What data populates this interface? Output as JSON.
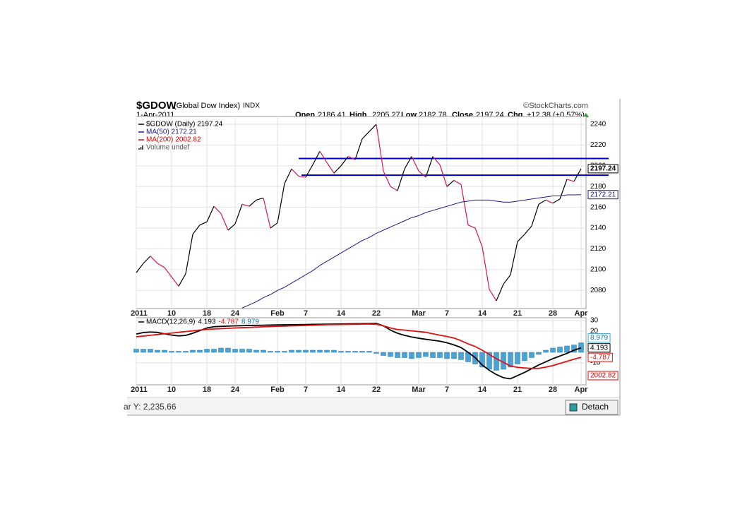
{
  "header": {
    "symbol": "$GDOW",
    "name": "(Global Dow Index)",
    "exchange": "INDX",
    "date": "1-Apr-2011",
    "credit": "©StockCharts.com",
    "quote": [
      {
        "label": "Open",
        "value": 2186.41
      },
      {
        "label": "High",
        "value": 2205.27
      },
      {
        "label": "Low",
        "value": 2182.78
      },
      {
        "label": "Close",
        "value": 2197.24
      },
      {
        "label": "Chg",
        "value": "+12.38 (+0.57%)"
      }
    ]
  },
  "chart_data": [
    {
      "type": "line",
      "xlim": [
        0,
        63.7
      ],
      "ylim": [
        2062.5,
        2247.5
      ],
      "yticks": [
        2080,
        2100,
        2120,
        2140,
        2160,
        2180,
        2200,
        2220,
        2240
      ],
      "grid": true,
      "xticks": [
        {
          "value": 0,
          "label": "2011"
        },
        {
          "value": 5,
          "label": "10"
        },
        {
          "value": 10,
          "label": "18"
        },
        {
          "value": 14,
          "label": "24"
        },
        {
          "value": 20,
          "label": "Feb"
        },
        {
          "value": 24,
          "label": "7"
        },
        {
          "value": 29,
          "label": "14"
        },
        {
          "value": 34,
          "label": "22"
        },
        {
          "value": 40,
          "label": "Mar"
        },
        {
          "value": 44,
          "label": "7"
        },
        {
          "value": 49,
          "label": "14"
        },
        {
          "value": 54,
          "label": "21"
        },
        {
          "value": 59,
          "label": "28"
        },
        {
          "value": 63,
          "label": "Apr"
        }
      ],
      "hlines": [
        2207,
        2191
      ],
      "hline_color": "#0000cc",
      "down_color": "#d6145a",
      "series": [
        {
          "name": "$GDOW (Daily) 2197.24",
          "color": "#000000",
          "values": [
            2097,
            2106,
            2113,
            2106,
            2102,
            2093,
            2084,
            2096,
            2134,
            2143,
            2146,
            2161,
            2154,
            2138,
            2144,
            2163,
            2161,
            2167,
            2169,
            2140,
            2145,
            2183,
            2197,
            2190,
            2189,
            2201,
            2214,
            2203,
            2193,
            2200,
            2209,
            2206,
            2226,
            2233,
            2240,
            2195,
            2180,
            2176,
            2197,
            2209,
            2195,
            2189,
            2209,
            2201,
            2180,
            2186,
            2182,
            2143,
            2140,
            2122,
            2081,
            2070,
            2086,
            2095,
            2127,
            2134,
            2142,
            2163,
            2167,
            2164,
            2168,
            2187,
            2185,
            2197.24
          ]
        },
        {
          "name": "MA(50) 2172.21",
          "color": "#1a1a8c",
          "values": [
            null,
            null,
            null,
            null,
            null,
            null,
            null,
            null,
            null,
            null,
            null,
            null,
            null,
            null,
            null,
            2063,
            2066,
            2069,
            2073,
            2076,
            2080,
            2083,
            2087,
            2091,
            2095,
            2099,
            2104,
            2108,
            2112,
            2116,
            2120,
            2124,
            2128,
            2131,
            2135,
            2138,
            2141,
            2144,
            2147,
            2150,
            2152,
            2155,
            2157,
            2159,
            2161,
            2163,
            2165,
            2166,
            2167,
            2167,
            2167,
            2166,
            2165,
            2165,
            2166,
            2167,
            2168,
            2169,
            2170,
            2171,
            2171,
            2172,
            2172,
            2172.21
          ]
        }
      ],
      "legend_extra": [
        {
          "name": "MA(200)",
          "value": 2002.82,
          "color": "#dd0000"
        },
        {
          "name": "Volume undef",
          "color": "#555555"
        }
      ]
    },
    {
      "type": "macd",
      "label": "MACD(12,26,9)",
      "xlim": [
        0,
        63.7
      ],
      "ylim": [
        -30.7,
        32.7
      ],
      "yticks": [
        -10,
        20,
        30
      ],
      "grid": true,
      "xticks": [
        {
          "value": 0,
          "label": "2011"
        },
        {
          "value": 5,
          "label": "10"
        },
        {
          "value": 10,
          "label": "18"
        },
        {
          "value": 14,
          "label": "24"
        },
        {
          "value": 20,
          "label": "Feb"
        },
        {
          "value": 24,
          "label": "7"
        },
        {
          "value": 29,
          "label": "14"
        },
        {
          "value": 34,
          "label": "22"
        },
        {
          "value": 40,
          "label": "Mar"
        },
        {
          "value": 44,
          "label": "7"
        },
        {
          "value": 49,
          "label": "14"
        },
        {
          "value": 54,
          "label": "21"
        },
        {
          "value": 59,
          "label": "28"
        },
        {
          "value": 63,
          "label": "Apr"
        }
      ],
      "series": [
        {
          "kind": "line",
          "color": "#000000",
          "values": [
            17.3,
            18.7,
            19.2,
            18.8,
            17.5,
            16.3,
            15.5,
            16,
            18,
            20.5,
            23,
            24.2,
            24.5,
            24.8,
            25,
            25.2,
            25.4,
            25.5,
            25.6,
            25.8,
            25.9,
            26,
            26.1,
            26.2,
            26.3,
            26.4,
            26.5,
            26.6,
            26.7,
            26.8,
            26.9,
            27,
            27.1,
            27.2,
            27.3,
            25,
            21,
            18,
            16,
            14.5,
            13.3,
            12.3,
            11.4,
            10.5,
            9,
            7,
            4.5,
            0,
            -5,
            -12,
            -17,
            -21,
            -24,
            -25,
            -22,
            -19,
            -15.5,
            -12,
            -9,
            -6,
            -3.5,
            -1,
            2,
            4.193
          ]
        },
        {
          "kind": "line",
          "color": "#e01010",
          "values": [
            14.7,
            15.4,
            16.1,
            16.8,
            17.5,
            18.2,
            18.9,
            19.6,
            20.3,
            21,
            21.6,
            22.1,
            22.4,
            22.7,
            23,
            23.3,
            23.5,
            23.8,
            24.1,
            24.4,
            24.6,
            24.8,
            25,
            25.2,
            25.4,
            25.6,
            25.9,
            26.1,
            26.2,
            26.3,
            26.4,
            26.5,
            26.6,
            26.7,
            26.5,
            25,
            23,
            21.5,
            21,
            20.3,
            19.6,
            18.9,
            17.5,
            16.2,
            14.9,
            13.5,
            11,
            8,
            5.5,
            2,
            -2,
            -6,
            -9.5,
            -13,
            -14.2,
            -14.8,
            -15.2,
            -15.2,
            -14,
            -12.5,
            -10.5,
            -8.5,
            -6.5,
            -4.787
          ]
        },
        {
          "kind": "histogram",
          "color": "#4aa3d6",
          "values": [
            3,
            3,
            3,
            2,
            2,
            1,
            1,
            1,
            2,
            2,
            3,
            3,
            4,
            4,
            3,
            3,
            3,
            2,
            2,
            1,
            1,
            1,
            2,
            2,
            2,
            2,
            2,
            2,
            2,
            1,
            1,
            1,
            1,
            1,
            -1,
            -3,
            -4,
            -5,
            -5,
            -6,
            -5,
            -4,
            -5,
            -5,
            -6,
            -6,
            -7,
            -9,
            -11,
            -14,
            -16,
            -17,
            -16,
            -14,
            -11,
            -8,
            -5,
            -2,
            2,
            4,
            5,
            6,
            7,
            8.979
          ]
        }
      ]
    }
  ],
  "status": "ar Y: 2,235.66",
  "button": "Detach"
}
